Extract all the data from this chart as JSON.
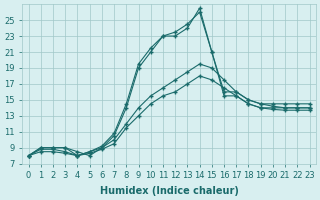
{
  "xlabel": "Humidex (Indice chaleur)",
  "ylabel": "",
  "bg_color": "#d8eff0",
  "grid_color": "#a0c8c8",
  "line_color": "#1a6b6b",
  "x": [
    0,
    1,
    2,
    3,
    4,
    5,
    6,
    7,
    8,
    9,
    10,
    11,
    12,
    13,
    14,
    15,
    16,
    17,
    18,
    19,
    20,
    21,
    22,
    23
  ],
  "line1": [
    8.0,
    9.0,
    9.0,
    9.0,
    8.5,
    8.0,
    9.0,
    10.5,
    14.0,
    19.0,
    21.0,
    23.0,
    23.0,
    24.0,
    26.5,
    21.0,
    15.5,
    15.5,
    14.5,
    14.0,
    14.0,
    14.0,
    14.0,
    14.0
  ],
  "line2": [
    8.0,
    9.0,
    9.0,
    9.0,
    8.0,
    8.5,
    9.2,
    10.8,
    14.5,
    19.5,
    21.5,
    23.0,
    23.5,
    24.5,
    26.0,
    21.0,
    16.0,
    16.0,
    15.0,
    14.5,
    14.5,
    14.5,
    14.5,
    14.5
  ],
  "line3": [
    8.0,
    8.8,
    8.8,
    8.5,
    8.0,
    8.5,
    9.0,
    10.0,
    12.0,
    14.0,
    15.5,
    16.5,
    17.5,
    18.5,
    19.5,
    19.0,
    17.5,
    16.0,
    15.0,
    14.5,
    14.2,
    14.0,
    14.0,
    14.0
  ],
  "line4": [
    8.0,
    8.5,
    8.5,
    8.3,
    8.0,
    8.3,
    8.8,
    9.5,
    11.5,
    13.0,
    14.5,
    15.5,
    16.0,
    17.0,
    18.0,
    17.5,
    16.5,
    15.5,
    14.5,
    14.0,
    13.8,
    13.7,
    13.7,
    13.7
  ],
  "ylim": [
    7,
    27
  ],
  "yticks": [
    7,
    9,
    11,
    13,
    15,
    17,
    19,
    21,
    23,
    25
  ],
  "xticks": [
    0,
    1,
    2,
    3,
    4,
    5,
    6,
    7,
    8,
    9,
    10,
    11,
    12,
    13,
    14,
    15,
    16,
    17,
    18,
    19,
    20,
    21,
    22,
    23
  ],
  "tick_fontsize": 6,
  "label_fontsize": 7
}
